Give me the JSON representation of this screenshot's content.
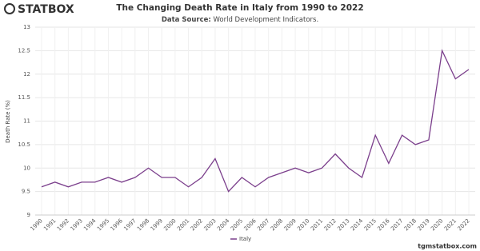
{
  "logo": "STATBOX",
  "footer": "tgmstatbox.com",
  "chart_data": {
    "type": "line",
    "title": "The Changing Death Rate in Italy from 1990 to 2022",
    "subtitle_label": "Data Source:",
    "subtitle": "World Development Indicators.",
    "y_label": "Death Rate (%)",
    "categories": [
      "1990",
      "1991",
      "1992",
      "1993",
      "1994",
      "1995",
      "1996",
      "1997",
      "1998",
      "1999",
      "2000",
      "2001",
      "2002",
      "2003",
      "2004",
      "2005",
      "2006",
      "2007",
      "2008",
      "2009",
      "2010",
      "2011",
      "2012",
      "2013",
      "2014",
      "2015",
      "2016",
      "2017",
      "2018",
      "2019",
      "2020",
      "2021",
      "2022"
    ],
    "series": [
      {
        "name": "Italy",
        "color": "#7b3f8c",
        "values": [
          9.6,
          9.7,
          9.6,
          9.7,
          9.7,
          9.8,
          9.7,
          9.8,
          10.0,
          9.8,
          9.8,
          9.6,
          9.8,
          10.2,
          9.5,
          9.8,
          9.6,
          9.8,
          9.9,
          10.0,
          9.9,
          10.0,
          10.3,
          10.0,
          9.8,
          10.7,
          10.1,
          10.7,
          10.5,
          10.6,
          12.5,
          11.9,
          12.1
        ]
      }
    ],
    "ylim": [
      9,
      13
    ],
    "yticks": [
      9,
      9.5,
      10,
      10.5,
      11,
      11.5,
      12,
      12.5,
      13
    ],
    "grid": true,
    "legend": "bottom"
  }
}
